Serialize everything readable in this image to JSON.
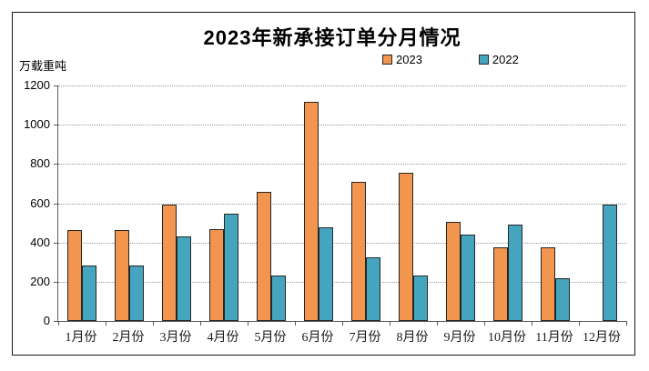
{
  "window": {
    "background": "#ffffff",
    "frame_border_color": "#1a1a1a"
  },
  "chart_data": {
    "type": "bar",
    "title": "2023年新承接订单分月情况",
    "ylabel": "万载重吨",
    "xlabel": "",
    "categories": [
      "1月份",
      "2月份",
      "3月份",
      "4月份",
      "5月份",
      "6月份",
      "7月份",
      "8月份",
      "9月份",
      "10月份",
      "11月份",
      "12月份"
    ],
    "series": [
      {
        "name": "2023",
        "color": "#F2954E",
        "values": [
          462,
          464,
          591,
          466,
          659,
          1119,
          708,
          756,
          505,
          374,
          376,
          null
        ]
      },
      {
        "name": "2022",
        "color": "#45A5BE",
        "values": [
          283,
          282,
          431,
          547,
          230,
          477,
          325,
          231,
          441,
          493,
          219,
          592
        ]
      }
    ],
    "ylim": [
      0,
      1200
    ],
    "ytick_step": 200,
    "yticks": [
      0,
      200,
      400,
      600,
      800,
      1000,
      1200
    ],
    "grid": "horizontal-dotted",
    "legend_position": "top-center",
    "bar_border_color": "#262626",
    "axis_color": "#595959",
    "gridline_color": "#9a9a9a"
  }
}
